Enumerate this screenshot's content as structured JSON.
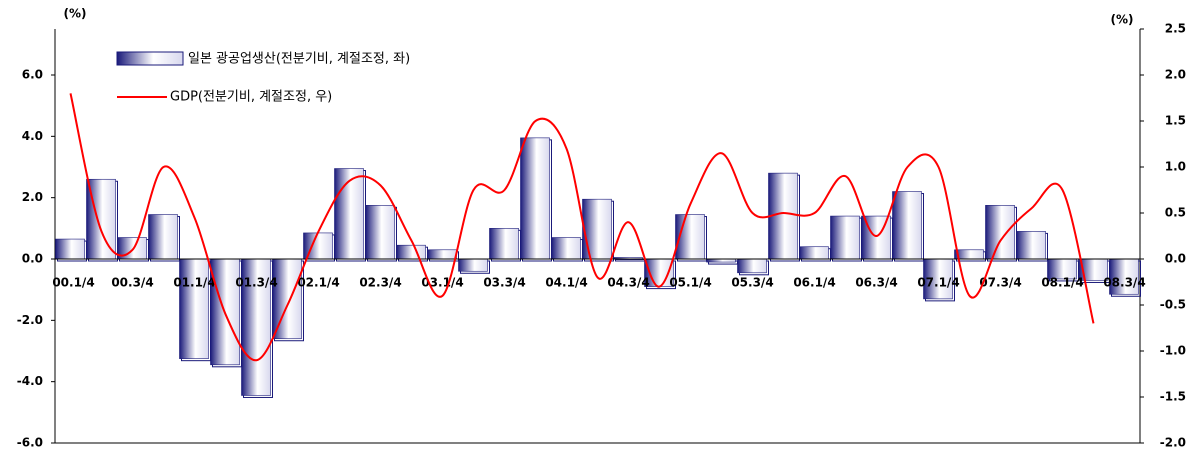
{
  "chart_data": {
    "type": "bar+line",
    "y_label": "(%)",
    "y2_label": "(%)",
    "categories": [
      "00.1/4",
      null,
      "00.3/4",
      null,
      "01.1/4",
      null,
      "01.3/4",
      null,
      "02.1/4",
      null,
      "02.3/4",
      null,
      "03.1/4",
      null,
      "03.3/4",
      null,
      "04.1/4",
      null,
      "04.3/4",
      null,
      "05.1/4",
      null,
      "05.3/4",
      null,
      "06.1/4",
      null,
      "06.3/4",
      null,
      "07.1/4",
      null,
      "07.3/4",
      null,
      "08.1/4",
      null,
      "08.3/4"
    ],
    "series": [
      {
        "name": "일본 광공업생산(전분기비, 계절조정, 좌)",
        "type": "bar",
        "color": "#1a1a7a",
        "values": [
          0.65,
          2.6,
          0.7,
          1.45,
          -3.25,
          -3.45,
          -4.45,
          -2.6,
          0.85,
          2.95,
          1.75,
          0.45,
          0.3,
          -0.4,
          1.0,
          3.95,
          0.7,
          1.95,
          0.05,
          -0.9,
          1.45,
          -0.1,
          -0.45,
          2.8,
          0.4,
          1.4,
          1.4,
          2.2,
          -1.3,
          0.3,
          1.75,
          0.9,
          -0.65,
          -0.7,
          -1.15
        ]
      },
      {
        "name": "GDP(전분기비, 계절조정, 우)",
        "type": "line",
        "axis": "y2",
        "color": "#ff0000",
        "values": [
          1.8,
          0.3,
          0.1,
          1.0,
          0.45,
          -0.6,
          -1.1,
          -0.5,
          0.3,
          0.85,
          0.8,
          0.2,
          -0.4,
          0.75,
          0.75,
          1.5,
          1.2,
          -0.2,
          0.4,
          -0.3,
          0.6,
          1.15,
          0.5,
          0.5,
          0.5,
          0.9,
          0.25,
          1.0,
          1.0,
          -0.4,
          0.2,
          0.55,
          0.75,
          -0.7,
          null
        ]
      }
    ],
    "ylim": [
      -6,
      7.5
    ],
    "yticks": [
      {
        "value": -6,
        "label": "-6.0"
      },
      {
        "value": -4,
        "label": "-4.0"
      },
      {
        "value": -2,
        "label": "-2.0"
      },
      {
        "value": 0,
        "label": "0.0"
      },
      {
        "value": 2,
        "label": "2.0"
      },
      {
        "value": 4,
        "label": "4.0"
      },
      {
        "value": 6,
        "label": "6.0"
      }
    ],
    "y2lim": [
      -2,
      2.5
    ],
    "y2ticks": [
      {
        "value": -2,
        "label": "-2.0"
      },
      -1.5,
      {
        "value": -1,
        "label": "-1.0"
      },
      -0.5,
      {
        "value": 0,
        "label": "0.0"
      },
      0.5,
      {
        "value": 1,
        "label": "1.0"
      },
      1.5,
      {
        "value": 2,
        "label": "2.0"
      },
      2.5
    ],
    "grid": false
  }
}
